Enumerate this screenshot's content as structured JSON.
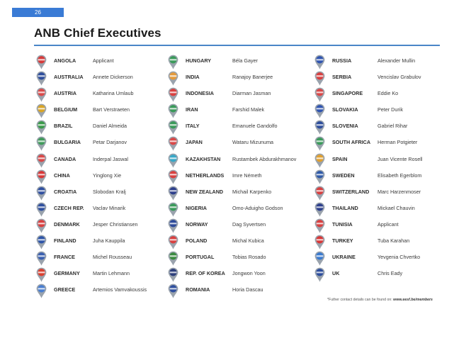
{
  "page_number": "26",
  "title": "ANB Chief Executives",
  "footnote": {
    "text": "*Futher contact details can be found on:",
    "url": "www.eesf.be/members"
  },
  "columns": [
    [
      {
        "country": "ANGOLA",
        "name": "Applicant",
        "color": "#d63b3b"
      },
      {
        "country": "AUSTRALIA",
        "name": "Annete Dickerson",
        "color": "#2d4d9c"
      },
      {
        "country": "AUSTRIA",
        "name": "Katharina Umlaub",
        "color": "#d94a4a"
      },
      {
        "country": "BELGIUM",
        "name": "Bart Verstraeten",
        "color": "#d9a526"
      },
      {
        "country": "BRAZIL",
        "name": "Daniel Almeida",
        "color": "#3a9a4a"
      },
      {
        "country": "BULGARIA",
        "name": "Petar Darjanov",
        "color": "#3f9a5a"
      },
      {
        "country": "CANADA",
        "name": "Inderpal Jaswal",
        "color": "#d94848"
      },
      {
        "country": "CHINA",
        "name": "Yinglong Xie",
        "color": "#d83838"
      },
      {
        "country": "CROATIA",
        "name": "Slobodan Kralj",
        "color": "#3050a0"
      },
      {
        "country": "CZECH REP.",
        "name": "Vaclav Minarik",
        "color": "#2f4f9e"
      },
      {
        "country": "DENMARK",
        "name": "Jesper Christiansen",
        "color": "#d84040"
      },
      {
        "country": "FINLAND",
        "name": "Juha Kauppila",
        "color": "#2e55a8"
      },
      {
        "country": "FRANCE",
        "name": "Michel Rousseau",
        "color": "#3a5fb0"
      },
      {
        "country": "GERMANY",
        "name": "Martin Lehmann",
        "color": "#d94030"
      },
      {
        "country": "GREECE",
        "name": "Artemios Vamvakoussis",
        "color": "#4a7ed0"
      }
    ],
    [
      {
        "country": "HUNGARY",
        "name": "Béla Gayer",
        "color": "#3a9a5a"
      },
      {
        "country": "INDIA",
        "name": "Ranajoy Banerjee",
        "color": "#e49a3a"
      },
      {
        "country": "INDONESIA",
        "name": "Diarman Jasman",
        "color": "#d84040"
      },
      {
        "country": "IRAN",
        "name": "Farshid Malek",
        "color": "#3a9a5a"
      },
      {
        "country": "ITALY",
        "name": "Emanuele Gandolfo",
        "color": "#3a9a5a"
      },
      {
        "country": "JAPAN",
        "name": "Wataru Mizunuma",
        "color": "#d84848"
      },
      {
        "country": "KAZAKHSTAN",
        "name": "Rustambek Abdurakhmanov",
        "color": "#38a8c8"
      },
      {
        "country": "NETHERLANDS",
        "name": "Imre Németh",
        "color": "#d84040"
      },
      {
        "country": "NEW ZEALAND",
        "name": "Michail Karpenko",
        "color": "#2d3f8c"
      },
      {
        "country": "NIGERIA",
        "name": "Omo-Aduigho Godson",
        "color": "#3a9a5a"
      },
      {
        "country": "NORWAY",
        "name": "Dag Syvertsen",
        "color": "#2d4a9a"
      },
      {
        "country": "POLAND",
        "name": "Michal Kubica",
        "color": "#d84040"
      },
      {
        "country": "PORTUGAL",
        "name": "Tobias Rosado",
        "color": "#3a8a40"
      },
      {
        "country": "REP. OF KOREA",
        "name": "Jongwon Yoon",
        "color": "#2d3f7c"
      },
      {
        "country": "ROMANIA",
        "name": "Horia Dascau",
        "color": "#2f4f9e"
      }
    ],
    [
      {
        "country": "RUSSIA",
        "name": "Alexander Mullin",
        "color": "#3055b0"
      },
      {
        "country": "SERBIA",
        "name": "Vencislav Grabulov",
        "color": "#d84040"
      },
      {
        "country": "SINGAPORE",
        "name": "Eddie Ko",
        "color": "#d84848"
      },
      {
        "country": "SLOVAKIA",
        "name": "Peter Durik",
        "color": "#3055b0"
      },
      {
        "country": "SLOVENIA",
        "name": "Gabriel Rihar",
        "color": "#2d4d9c"
      },
      {
        "country": "SOUTH AFRICA",
        "name": "Herman Potgieter",
        "color": "#3a9a5a"
      },
      {
        "country": "SPAIN",
        "name": "Juan Vicente Rosell",
        "color": "#e0a030"
      },
      {
        "country": "SWEDEN",
        "name": "Elisabeth Egerblom",
        "color": "#2f5aa8"
      },
      {
        "country": "SWITZERLAND",
        "name": "Marc Harzenmoser",
        "color": "#d84040"
      },
      {
        "country": "THAILAND",
        "name": "Mickael Chauvin",
        "color": "#2d3f8c"
      },
      {
        "country": "TUNISIA",
        "name": "Applicant",
        "color": "#d84040"
      },
      {
        "country": "TURKEY",
        "name": "Tuba Karahan",
        "color": "#d83838"
      },
      {
        "country": "UKRAINE",
        "name": "Yevgenia Chvertko",
        "color": "#3a7ad0"
      },
      {
        "country": "UK",
        "name": "Chris Eady",
        "color": "#2d4d9c"
      }
    ]
  ]
}
